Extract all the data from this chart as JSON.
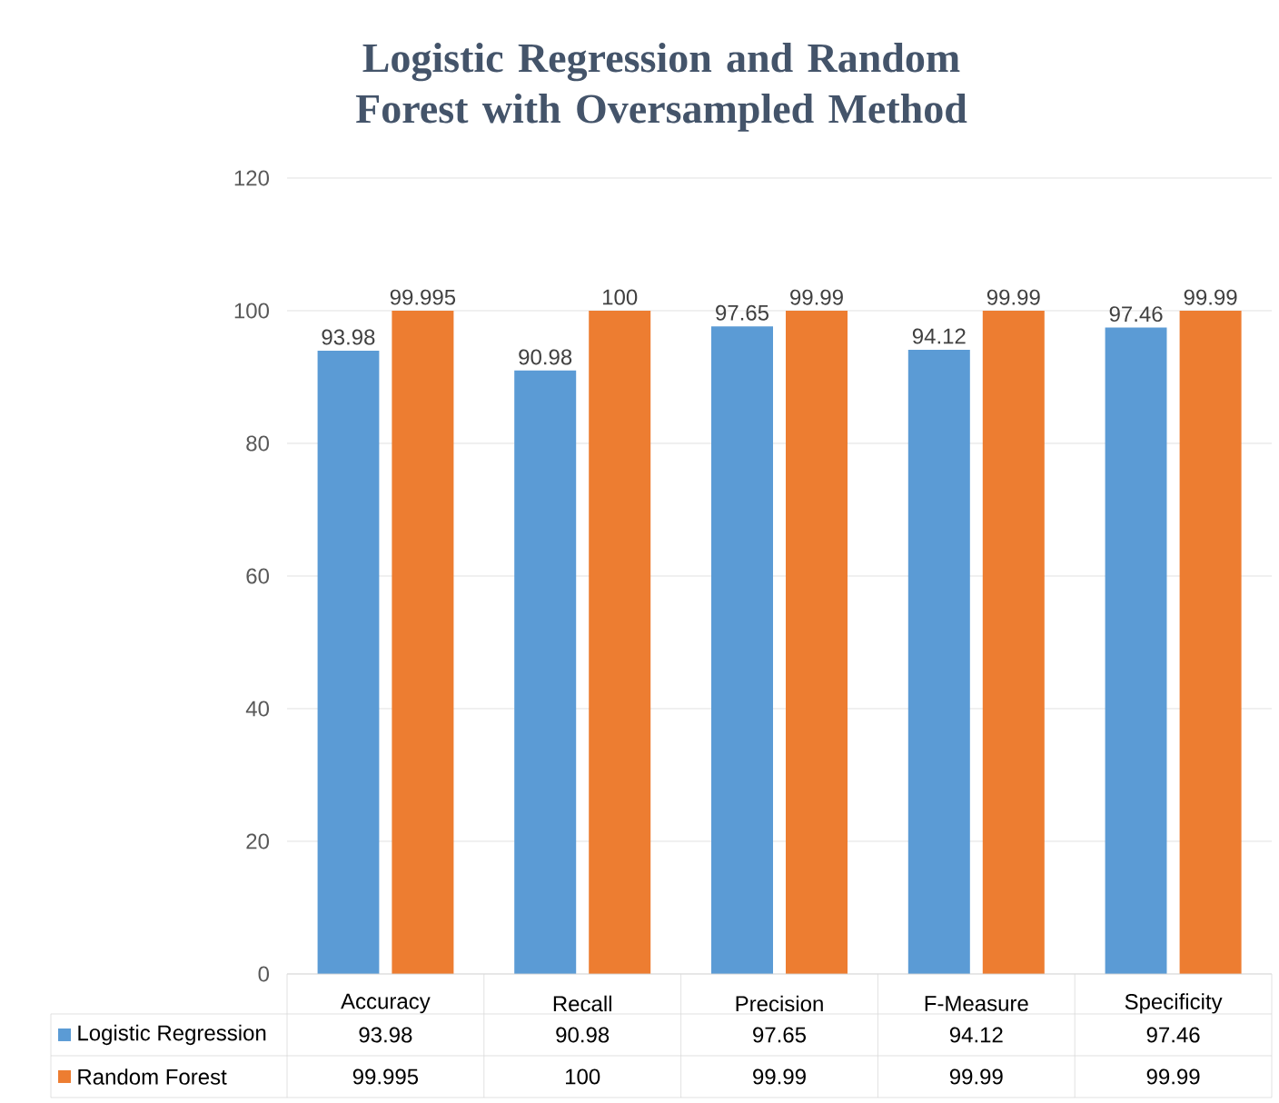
{
  "chart_data": {
    "type": "bar",
    "title": "Logistic Regression and Random Forest with Oversampled Method",
    "categories": [
      "Accuracy",
      "Recall",
      "Precision",
      "F-Measure",
      "Specificity"
    ],
    "series": [
      {
        "name": "Logistic Regression",
        "color": "#5b9bd5",
        "values": [
          93.98,
          90.98,
          97.65,
          94.12,
          97.46
        ],
        "value_labels": [
          "93.98",
          "90.98",
          "97.65",
          "94.12",
          "97.46"
        ]
      },
      {
        "name": "Random Forest",
        "color": "#ed7d31",
        "values": [
          99.995,
          100,
          99.99,
          99.99,
          99.99
        ],
        "value_labels": [
          "99.995",
          "100",
          "99.99",
          "99.99",
          "99.99"
        ]
      }
    ],
    "ylim": [
      0,
      120
    ],
    "yticks": [
      0,
      20,
      40,
      60,
      80,
      100,
      120
    ],
    "grid": "y",
    "legend": "bottom left",
    "data_labels": true
  }
}
